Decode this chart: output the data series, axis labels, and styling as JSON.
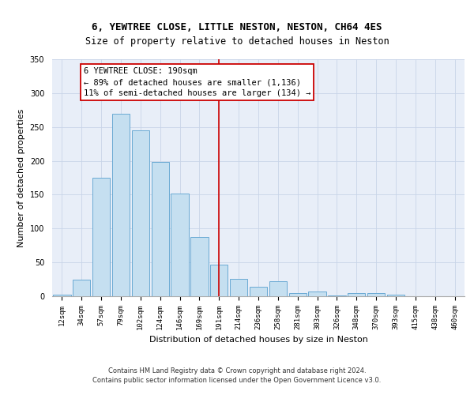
{
  "title_line1": "6, YEWTREE CLOSE, LITTLE NESTON, NESTON, CH64 4ES",
  "title_line2": "Size of property relative to detached houses in Neston",
  "xlabel": "Distribution of detached houses by size in Neston",
  "ylabel": "Number of detached properties",
  "categories": [
    "12sqm",
    "34sqm",
    "57sqm",
    "79sqm",
    "102sqm",
    "124sqm",
    "146sqm",
    "169sqm",
    "191sqm",
    "214sqm",
    "236sqm",
    "258sqm",
    "281sqm",
    "303sqm",
    "326sqm",
    "348sqm",
    "370sqm",
    "393sqm",
    "415sqm",
    "438sqm",
    "460sqm"
  ],
  "values": [
    2,
    25,
    175,
    270,
    245,
    198,
    152,
    88,
    47,
    26,
    14,
    22,
    5,
    7,
    1,
    5,
    5,
    2,
    0,
    0,
    0
  ],
  "bar_color": "#c5dff0",
  "bar_edge_color": "#6aaad4",
  "vline_color": "#cc0000",
  "annotation_title": "6 YEWTREE CLOSE: 190sqm",
  "annotation_line2": "← 89% of detached houses are smaller (1,136)",
  "annotation_line3": "11% of semi-detached houses are larger (134) →",
  "annotation_box_edgecolor": "#cc0000",
  "annotation_bg_color": "#ffffff",
  "ylim": [
    0,
    350
  ],
  "yticks": [
    0,
    50,
    100,
    150,
    200,
    250,
    300,
    350
  ],
  "grid_color": "#c8d4e8",
  "background_color": "#e8eef8",
  "footer_line1": "Contains HM Land Registry data © Crown copyright and database right 2024.",
  "footer_line2": "Contains public sector information licensed under the Open Government Licence v3.0.",
  "title_fontsize": 9,
  "subtitle_fontsize": 8.5,
  "axis_label_fontsize": 8,
  "tick_fontsize": 6.5,
  "annotation_fontsize": 7.5,
  "footer_fontsize": 6
}
